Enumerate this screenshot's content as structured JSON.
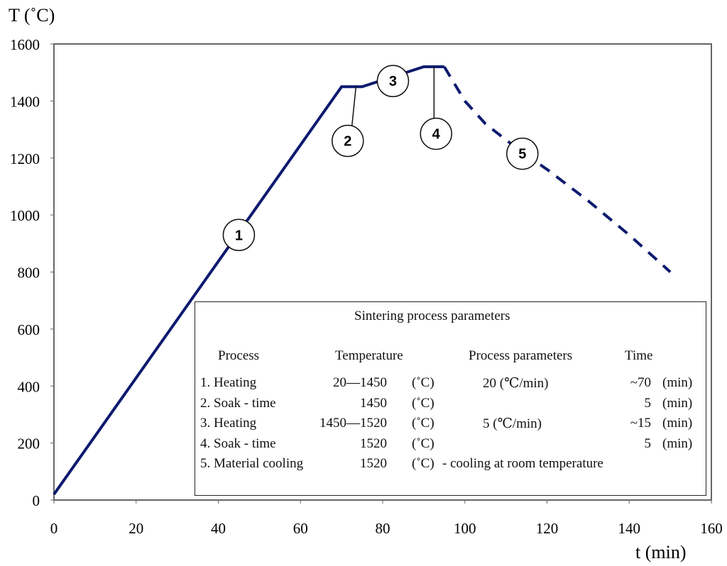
{
  "chart_data": {
    "type": "line",
    "xlabel": "t (min)",
    "ylabel": "T (˚C)",
    "xlim": [
      0,
      160
    ],
    "ylim": [
      0,
      1600
    ],
    "xticks": [
      "0",
      "20",
      "40",
      "60",
      "80",
      "100",
      "120",
      "140",
      "160"
    ],
    "yticks": [
      "0",
      "200",
      "400",
      "600",
      "800",
      "1000",
      "1200",
      "1400",
      "1600"
    ],
    "grid": false,
    "line_color": "#0d1a6e",
    "series": [
      {
        "style": "solid",
        "x": [
          0,
          70,
          75,
          90,
          95
        ],
        "y": [
          20,
          1450,
          1450,
          1520,
          1520
        ]
      },
      {
        "style": "dashed",
        "x": [
          95,
          100,
          105,
          113,
          120,
          130,
          140,
          150
        ],
        "y": [
          1520,
          1400,
          1320,
          1230,
          1160,
          1050,
          930,
          800
        ]
      }
    ],
    "annotations": [
      {
        "label": "1",
        "x": 45,
        "y": 930
      },
      {
        "label": "2",
        "x": 71.5,
        "y": 1260
      },
      {
        "label": "3",
        "x": 82.5,
        "y": 1470
      },
      {
        "label": "4",
        "x": 93,
        "y": 1285
      },
      {
        "label": "5",
        "x": 114,
        "y": 1215
      }
    ]
  },
  "table": {
    "title": "Sintering process parameters",
    "headers": [
      "Process",
      "Temperature",
      "Process parameters",
      "Time"
    ],
    "rows": [
      {
        "process": "1. Heating",
        "temp": "20—1450",
        "unit": "(˚C)",
        "param": "20  (℃/min)",
        "time": "~70",
        "tunit": "(min)"
      },
      {
        "process": "2. Soak - time",
        "temp": "1450",
        "unit": "(˚C)",
        "param": "",
        "time": "5",
        "tunit": "(min)"
      },
      {
        "process": "3. Heating",
        "temp": "1450—1520",
        "unit": "(˚C)",
        "param": "5   (℃/min)",
        "time": "~15",
        "tunit": "(min)"
      },
      {
        "process": "4. Soak - time",
        "temp": "1520",
        "unit": "(˚C)",
        "param": "",
        "time": "5",
        "tunit": "(min)"
      },
      {
        "process": "5. Material cooling",
        "temp": "1520",
        "unit": "(˚C)",
        "param": "-  cooling at room temperature",
        "time": "",
        "tunit": ""
      }
    ]
  }
}
